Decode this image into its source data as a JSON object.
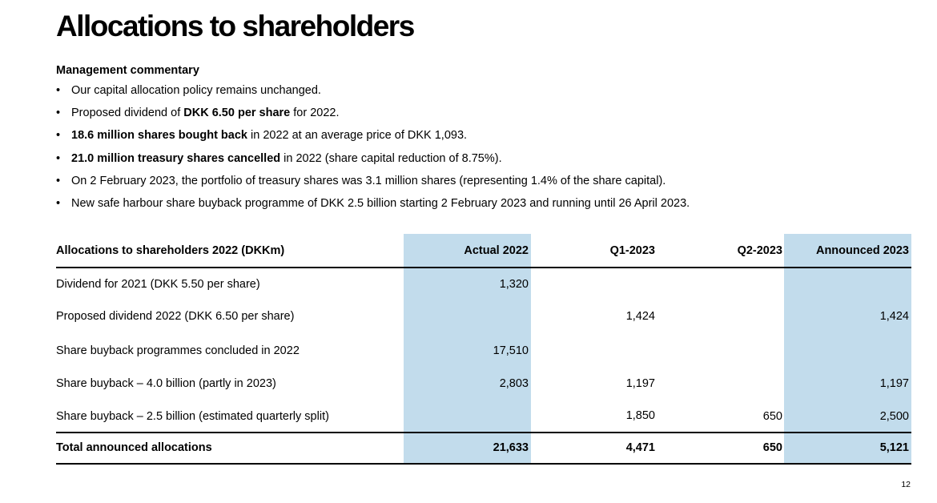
{
  "title": "Allocations to shareholders",
  "commentary": {
    "heading": "Management commentary",
    "bullet": "•",
    "items": [
      {
        "pre": "Our capital allocation policy remains unchanged.",
        "bold": "",
        "post": ""
      },
      {
        "pre": "Proposed dividend of ",
        "bold": "DKK 6.50 per share",
        "post": " for 2022."
      },
      {
        "pre": "",
        "bold": "18.6 million shares bought back",
        "post": " in 2022 at an average price of DKK 1,093."
      },
      {
        "pre": "",
        "bold": "21.0 million treasury shares cancelled",
        "post": " in 2022 (share capital reduction of 8.75%)."
      },
      {
        "pre": "On 2 February 2023, the portfolio of treasury shares was 3.1 million shares (representing 1.4% of the share capital).",
        "bold": "",
        "post": ""
      },
      {
        "pre": "New safe harbour share buyback programme of DKK 2.5 billion starting 2 February 2023 and running until 26 April 2023.",
        "bold": "",
        "post": ""
      }
    ]
  },
  "table": {
    "headers": [
      "Allocations to shareholders 2022 (DKKm)",
      "Actual 2022",
      "Q1-2023",
      "Q2-2023",
      "Announced 2023"
    ],
    "rows": [
      [
        "Dividend for 2021 (DKK 5.50 per share)",
        "1,320",
        "",
        "",
        ""
      ],
      [
        "Proposed dividend 2022 (DKK 6.50 per share)",
        "",
        "1,424",
        "",
        "1,424"
      ],
      [
        "Share buyback programmes concluded in 2022",
        "17,510",
        "",
        "",
        ""
      ],
      [
        "Share buyback – 4.0 billion (partly in 2023)",
        "2,803",
        "1,197",
        "",
        "1,197"
      ],
      [
        "Share buyback – 2.5 billion (estimated quarterly split)",
        "",
        "1,850",
        "650",
        "2,500"
      ]
    ],
    "total": [
      "Total announced allocations",
      "21,633",
      "4,471",
      "650",
      "5,121"
    ],
    "highlight_color": "#c2dcec"
  },
  "page_number": "12"
}
